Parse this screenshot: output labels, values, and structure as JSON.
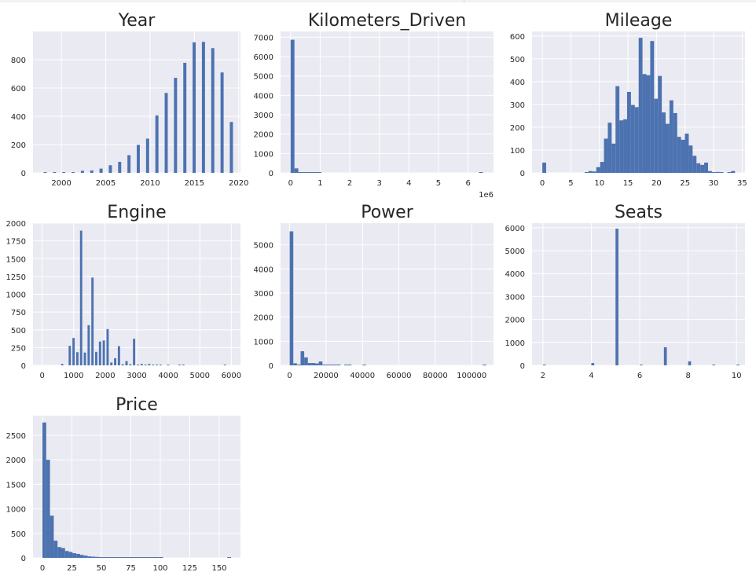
{
  "chart_data": [
    {
      "type": "bar",
      "title": "Year",
      "xlim": [
        1996.8,
        2020.2
      ],
      "ylim": [
        0,
        1000
      ],
      "xticks": [
        2000,
        2005,
        2010,
        2015,
        2020
      ],
      "yticks": [
        0,
        200,
        400,
        600,
        800
      ],
      "xtick_labels": [
        "2000",
        "2005",
        "2010",
        "2015",
        "2020"
      ],
      "ytick_labels": [
        "0",
        "200",
        "400",
        "600",
        "800"
      ],
      "grid": true,
      "bins": {
        "x_start": [
          1998.0,
          1999.05,
          2000.1,
          2001.15,
          2002.2,
          2003.25,
          2004.3,
          2005.35,
          2006.4,
          2007.45,
          2008.5,
          2009.55,
          2010.6,
          2011.65,
          2012.7,
          2013.75,
          2014.8,
          2015.85,
          2016.9,
          2017.95,
          2019.0
        ],
        "x_end": [
          1998.35,
          1999.4,
          2000.45,
          2001.5,
          2002.55,
          2003.6,
          2004.65,
          2005.7,
          2006.75,
          2007.8,
          2008.85,
          2009.9,
          2010.95,
          2012.0,
          2013.05,
          2014.1,
          2015.15,
          2016.2,
          2017.25,
          2018.3,
          2019.35
        ],
        "values": [
          4,
          2,
          4,
          1,
          15,
          17,
          30,
          54,
          78,
          125,
          198,
          242,
          406,
          565,
          672,
          778,
          923,
          926,
          882,
          710,
          360
        ]
      }
    },
    {
      "type": "bar",
      "title": "Kilometers_Driven",
      "xlim": [
        -340000,
        6860000
      ],
      "ylim": [
        0,
        7300
      ],
      "xticks": [
        0,
        1000000,
        2000000,
        3000000,
        4000000,
        5000000,
        6000000
      ],
      "yticks": [
        0,
        1000,
        2000,
        3000,
        4000,
        5000,
        6000,
        7000
      ],
      "xtick_labels": [
        "0",
        "1",
        "2",
        "3",
        "4",
        "5",
        "6"
      ],
      "ytick_labels": [
        "0",
        "1000",
        "2000",
        "3000",
        "4000",
        "5000",
        "6000",
        "7000"
      ],
      "x_offset_label": "1e6",
      "grid": true,
      "bins": {
        "x_start": [
          0,
          130000,
          260000,
          390000,
          520000,
          650000,
          780000,
          910000,
          1040000,
          1170000,
          1300000,
          1430000,
          1560000,
          1690000,
          1820000,
          1950000,
          2080000,
          2210000,
          2340000,
          2470000,
          2600000,
          2730000,
          2860000,
          2990000,
          3120000,
          3250000,
          3380000,
          3510000,
          3640000,
          3770000,
          3900000,
          4030000,
          4160000,
          4290000,
          4420000,
          4550000,
          4680000,
          4810000,
          4940000,
          5070000,
          5200000,
          5330000,
          5460000,
          5590000,
          5720000,
          5850000,
          5980000,
          6110000,
          6240000,
          6370000
        ],
        "x_end": [
          130000,
          260000,
          390000,
          520000,
          650000,
          780000,
          910000,
          1040000,
          1170000,
          1300000,
          1430000,
          1560000,
          1690000,
          1820000,
          1950000,
          2080000,
          2210000,
          2340000,
          2470000,
          2600000,
          2730000,
          2860000,
          2990000,
          3120000,
          3250000,
          3380000,
          3510000,
          3640000,
          3770000,
          3900000,
          4030000,
          4160000,
          4290000,
          4420000,
          4550000,
          4680000,
          4810000,
          4940000,
          5070000,
          5200000,
          5330000,
          5460000,
          5590000,
          5720000,
          5850000,
          5980000,
          6110000,
          6240000,
          6370000,
          6500000
        ],
        "values": [
          6870,
          230,
          8,
          3,
          2,
          1,
          1,
          1,
          0,
          0,
          0,
          0,
          0,
          0,
          0,
          0,
          0,
          0,
          0,
          0,
          0,
          0,
          0,
          0,
          0,
          0,
          0,
          0,
          0,
          0,
          0,
          0,
          0,
          0,
          0,
          0,
          0,
          0,
          0,
          0,
          0,
          0,
          0,
          0,
          0,
          0,
          0,
          0,
          0,
          1
        ]
      }
    },
    {
      "type": "bar",
      "title": "Mileage",
      "xlim": [
        -1.8,
        35.5
      ],
      "ylim": [
        0,
        620
      ],
      "xticks": [
        0,
        5,
        10,
        15,
        20,
        25,
        30,
        35
      ],
      "yticks": [
        0,
        100,
        200,
        300,
        400,
        500,
        600
      ],
      "xtick_labels": [
        "0",
        "5",
        "10",
        "15",
        "20",
        "25",
        "30",
        "35"
      ],
      "ytick_labels": [
        "0",
        "100",
        "200",
        "300",
        "400",
        "500",
        "600"
      ],
      "grid": true,
      "bins": {
        "x_start": [
          0.0,
          0.675,
          1.35,
          2.025,
          2.7,
          3.375,
          4.05,
          4.725,
          5.4,
          6.075,
          6.75,
          7.425,
          8.1,
          8.775,
          9.45,
          10.125,
          10.8,
          11.475,
          12.15,
          12.825,
          13.5,
          14.175,
          14.85,
          15.525,
          16.2,
          16.875,
          17.55,
          18.225,
          18.9,
          19.575,
          20.25,
          20.925,
          21.6,
          22.275,
          22.95,
          23.625,
          24.3,
          24.975,
          25.65,
          26.325,
          27.0,
          27.675,
          28.35,
          29.025,
          29.7,
          30.375,
          31.05,
          31.725,
          32.4,
          33.075
        ],
        "x_end": [
          0.675,
          1.35,
          2.025,
          2.7,
          3.375,
          4.05,
          4.725,
          5.4,
          6.075,
          6.75,
          7.425,
          8.1,
          8.775,
          9.45,
          10.125,
          10.8,
          11.475,
          12.15,
          12.825,
          13.5,
          14.175,
          14.85,
          15.525,
          16.2,
          16.875,
          17.55,
          18.225,
          18.9,
          19.575,
          20.25,
          20.925,
          21.6,
          22.275,
          22.95,
          23.625,
          24.3,
          24.975,
          25.65,
          26.325,
          27.0,
          27.675,
          28.35,
          29.025,
          29.7,
          30.375,
          31.05,
          31.725,
          32.4,
          33.075,
          33.75
        ],
        "values": [
          45,
          0,
          0,
          0,
          0,
          0,
          0,
          0,
          0,
          0,
          0,
          3,
          8,
          6,
          25,
          48,
          150,
          220,
          128,
          380,
          230,
          235,
          355,
          298,
          288,
          592,
          433,
          428,
          578,
          325,
          425,
          265,
          215,
          318,
          262,
          158,
          145,
          172,
          120,
          75,
          42,
          35,
          45,
          8,
          3,
          4,
          1,
          0,
          3,
          8
        ]
      }
    },
    {
      "type": "bar",
      "title": "Engine",
      "xlim": [
        -290,
        6290
      ],
      "ylim": [
        0,
        2000
      ],
      "xticks": [
        0,
        1000,
        2000,
        3000,
        4000,
        5000,
        6000
      ],
      "yticks": [
        0,
        250,
        500,
        750,
        1000,
        1250,
        1500,
        1750,
        2000
      ],
      "xtick_labels": [
        "0",
        "1000",
        "2000",
        "3000",
        "4000",
        "5000",
        "6000"
      ],
      "ytick_labels": [
        "0",
        "250",
        "500",
        "750",
        "1000",
        "1250",
        "1500",
        "1750",
        "2000"
      ],
      "grid": true,
      "bins": {
        "x_start": [
          600,
          720,
          840,
          960,
          1080,
          1200,
          1320,
          1440,
          1560,
          1680,
          1800,
          1920,
          2040,
          2160,
          2280,
          2400,
          2520,
          2640,
          2760,
          2880,
          3000,
          3120,
          3240,
          3360,
          3480,
          3600,
          3720,
          3840,
          3960,
          4080,
          4200,
          4320,
          4440,
          4560,
          4680,
          4800,
          4920,
          5040,
          5160,
          5280,
          5400,
          5520,
          5640,
          5760
        ],
        "x_end": [
          672,
          792,
          912,
          1032,
          1152,
          1272,
          1392,
          1512,
          1632,
          1752,
          1872,
          1992,
          2112,
          2232,
          2352,
          2472,
          2592,
          2712,
          2832,
          2952,
          3072,
          3192,
          3312,
          3432,
          3552,
          3672,
          3792,
          3912,
          4032,
          4152,
          4272,
          4392,
          4512,
          4632,
          4752,
          4872,
          4992,
          5112,
          5232,
          5352,
          5472,
          5592,
          5712,
          5832
        ],
        "values": [
          20,
          0,
          275,
          385,
          185,
          1895,
          180,
          565,
          1235,
          190,
          335,
          350,
          510,
          40,
          100,
          270,
          15,
          60,
          15,
          375,
          10,
          20,
          10,
          20,
          5,
          5,
          5,
          0,
          5,
          0,
          0,
          5,
          5,
          0,
          0,
          0,
          0,
          0,
          0,
          0,
          0,
          0,
          0,
          5
        ]
      }
    },
    {
      "type": "bar",
      "title": "Power",
      "xlim": [
        -5000,
        112000
      ],
      "ylim": [
        0,
        5900
      ],
      "xticks": [
        0,
        20000,
        40000,
        60000,
        80000,
        100000
      ],
      "yticks": [
        0,
        1000,
        2000,
        3000,
        4000,
        5000
      ],
      "xtick_labels": [
        "0",
        "20000",
        "40000",
        "60000",
        "80000",
        "100000"
      ],
      "ytick_labels": [
        "0",
        "1000",
        "2000",
        "3000",
        "4000",
        "5000"
      ],
      "grid": true,
      "bins": {
        "x_start": [
          0,
          2000,
          4000,
          6000,
          8000,
          10000,
          12000,
          14000,
          16000,
          18000,
          20000,
          22000,
          24000,
          26000,
          28000,
          30000,
          32000,
          34000,
          36000,
          38000,
          40000,
          42000,
          44000,
          46000,
          48000,
          50000,
          52000,
          54000,
          56000,
          58000,
          60000,
          62000,
          64000,
          66000,
          68000,
          70000,
          72000,
          74000,
          76000,
          78000,
          80000,
          82000,
          84000,
          86000,
          88000,
          90000,
          92000,
          94000,
          96000,
          98000,
          100000,
          102000,
          104000,
          106000
        ],
        "x_end": [
          2000,
          4000,
          6000,
          8000,
          10000,
          12000,
          14000,
          16000,
          18000,
          20000,
          22000,
          24000,
          26000,
          28000,
          30000,
          32000,
          34000,
          36000,
          38000,
          40000,
          42000,
          44000,
          46000,
          48000,
          50000,
          52000,
          54000,
          56000,
          58000,
          60000,
          62000,
          64000,
          66000,
          68000,
          70000,
          72000,
          74000,
          76000,
          78000,
          80000,
          82000,
          84000,
          86000,
          88000,
          90000,
          92000,
          94000,
          96000,
          98000,
          100000,
          102000,
          104000,
          106000,
          108000
        ],
        "values": [
          5560,
          85,
          20,
          585,
          330,
          95,
          95,
          80,
          160,
          10,
          5,
          5,
          10,
          5,
          0,
          5,
          5,
          0,
          0,
          0,
          5,
          0,
          0,
          0,
          0,
          0,
          0,
          0,
          0,
          0,
          0,
          0,
          0,
          0,
          0,
          0,
          0,
          0,
          0,
          0,
          0,
          0,
          0,
          0,
          0,
          0,
          0,
          0,
          0,
          0,
          0,
          0,
          0,
          5
        ]
      }
    },
    {
      "type": "bar",
      "title": "Seats",
      "xlim": [
        1.55,
        10.35
      ],
      "ylim": [
        0,
        6200
      ],
      "xticks": [
        2,
        4,
        6,
        8,
        10
      ],
      "yticks": [
        0,
        1000,
        2000,
        3000,
        4000,
        5000,
        6000
      ],
      "xtick_labels": [
        "2",
        "4",
        "6",
        "8",
        "10"
      ],
      "ytick_labels": [
        "0",
        "1000",
        "2000",
        "3000",
        "4000",
        "5000",
        "6000"
      ],
      "grid": true,
      "bins": {
        "x_start": [
          2.0,
          4.0,
          5.0,
          6.0,
          7.0,
          8.0,
          9.0,
          10.0
        ],
        "x_end": [
          2.12,
          4.12,
          5.12,
          6.12,
          7.12,
          8.12,
          9.12,
          10.12
        ],
        "values": [
          1,
          100,
          5960,
          30,
          790,
          175,
          5,
          5
        ]
      }
    },
    {
      "type": "bar",
      "title": "Price",
      "xlim": [
        -8,
        168
      ],
      "ylim": [
        0,
        2900
      ],
      "xticks": [
        0,
        25,
        50,
        75,
        100,
        125,
        150
      ],
      "yticks": [
        0,
        500,
        1000,
        1500,
        2000,
        2500
      ],
      "xtick_labels": [
        "0",
        "25",
        "50",
        "75",
        "100",
        "125",
        "150"
      ],
      "ytick_labels": [
        "0",
        "500",
        "1000",
        "1500",
        "2000",
        "2500"
      ],
      "grid": true,
      "bins": {
        "x_start": [
          0.0,
          3.2,
          6.4,
          9.6,
          12.8,
          16.0,
          19.2,
          22.4,
          25.6,
          28.8,
          32.0,
          35.2,
          38.4,
          41.6,
          44.8,
          48.0,
          51.2,
          54.4,
          57.6,
          60.8,
          64.0,
          67.2,
          70.4,
          73.6,
          76.8,
          80.0,
          83.2,
          86.4,
          89.6,
          92.8,
          96.0,
          99.2,
          102.4,
          105.6,
          108.8,
          112.0,
          115.2,
          118.4,
          121.6,
          124.8,
          128.0,
          131.2,
          134.4,
          137.6,
          140.8,
          144.0,
          147.2,
          150.4,
          153.6,
          156.8
        ],
        "x_end": [
          3.2,
          6.4,
          9.6,
          12.8,
          16.0,
          19.2,
          22.4,
          25.6,
          28.8,
          32.0,
          35.2,
          38.4,
          41.6,
          44.8,
          48.0,
          51.2,
          54.4,
          57.6,
          60.8,
          64.0,
          67.2,
          70.4,
          73.6,
          76.8,
          80.0,
          83.2,
          86.4,
          89.6,
          92.8,
          96.0,
          99.2,
          102.4,
          105.6,
          108.8,
          112.0,
          115.2,
          118.4,
          121.6,
          124.8,
          128.0,
          131.2,
          134.4,
          137.6,
          140.8,
          144.0,
          147.2,
          150.4,
          153.6,
          156.8,
          160.0
        ],
        "values": [
          2760,
          2000,
          860,
          350,
          220,
          200,
          140,
          120,
          95,
          80,
          60,
          45,
          30,
          25,
          20,
          15,
          12,
          10,
          8,
          6,
          5,
          5,
          4,
          3,
          3,
          2,
          2,
          2,
          1,
          1,
          1,
          1,
          0,
          0,
          0,
          0,
          0,
          0,
          0,
          0,
          0,
          0,
          0,
          0,
          0,
          0,
          0,
          0,
          0,
          1
        ]
      }
    }
  ],
  "style": {
    "page_background": "#ffffff",
    "axes_background": "#eaeaf2",
    "grid_color": "#ffffff",
    "bar_color": "#4c72b0",
    "text_color": "#262626"
  }
}
